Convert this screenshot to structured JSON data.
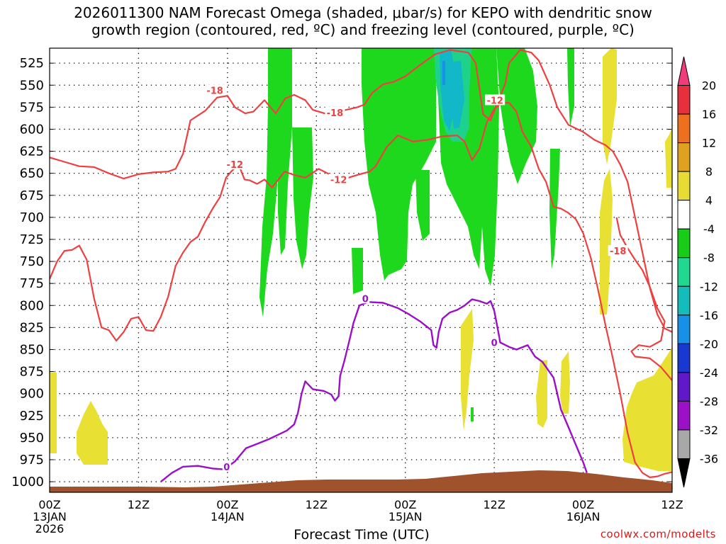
{
  "chart_data": {
    "type": "heatmap",
    "title_line1": "2026011300 NAM Forecast Omega (shaded, μbar/s) for KEPO with dendritic snow",
    "title_line2": "growth region (contoured, red, ºC) and freezing level (contoured, purple, ºC)",
    "xlabel": "Forecast Time (UTC)",
    "credit": "coolwx.com/modelts",
    "x_hours_range": [
      0,
      84
    ],
    "pressure_range_hpa": [
      1012,
      508
    ],
    "y_ticks": [
      525,
      550,
      575,
      600,
      625,
      650,
      675,
      700,
      725,
      750,
      775,
      800,
      825,
      850,
      875,
      900,
      925,
      950,
      975,
      1000
    ],
    "x_ticks": [
      {
        "hour": 0,
        "lines": [
          "00Z",
          "13JAN",
          "2026"
        ]
      },
      {
        "hour": 12,
        "lines": [
          "12Z"
        ]
      },
      {
        "hour": 24,
        "lines": [
          "00Z",
          "14JAN"
        ]
      },
      {
        "hour": 36,
        "lines": [
          "12Z"
        ]
      },
      {
        "hour": 48,
        "lines": [
          "00Z",
          "15JAN"
        ]
      },
      {
        "hour": 60,
        "lines": [
          "12Z"
        ]
      },
      {
        "hour": 72,
        "lines": [
          "00Z",
          "16JAN"
        ]
      },
      {
        "hour": 84,
        "lines": [
          "12Z"
        ]
      }
    ],
    "colorbar": {
      "labels": [
        "20",
        "16",
        "12",
        "8",
        "4",
        "-4",
        "-8",
        "-12",
        "-16",
        "-20",
        "-24",
        "-28",
        "-32",
        "-36"
      ],
      "colors": [
        "#f03c7a",
        "#e8303c",
        "#ec7020",
        "#e0a020",
        "#e8dc34",
        "#ffffff",
        "#18cc18",
        "#20d890",
        "#14bcbc",
        "#1890e8",
        "#1838d0",
        "#6018c8",
        "#9c10c8",
        "#a8a8a8",
        "#000000"
      ]
    },
    "shading_colors": {
      "green": "#1ed81e",
      "teal": "#1ed28c",
      "cyan": "#12b8c8",
      "yellow": "#e8e032",
      "terrain": "#a0522d"
    },
    "contour_colors": {
      "dendritic": "#ee4040",
      "freezing": "#9a10c8"
    },
    "contour_labels": [
      {
        "text": "-18",
        "hour": 22.3,
        "p": 556
      },
      {
        "text": "-18",
        "hour": 38.5,
        "p": 581
      },
      {
        "text": "-12",
        "hour": 25,
        "p": 640
      },
      {
        "text": "-12",
        "hour": 39,
        "p": 657
      },
      {
        "text": "-12",
        "hour": 60.1,
        "p": 567
      },
      {
        "text": "-18",
        "hour": 76.7,
        "p": 738
      },
      {
        "text": "0",
        "hour": 42.6,
        "p": 792
      },
      {
        "text": "0",
        "hour": 23.9,
        "p": 983
      },
      {
        "text": "0",
        "hour": 60,
        "p": 842
      }
    ],
    "dendritic_contours": [
      {
        "name": "-18 upper",
        "points": [
          [
            0,
            632
          ],
          [
            2,
            637
          ],
          [
            4,
            642
          ],
          [
            6,
            643
          ],
          [
            8,
            650
          ],
          [
            10,
            656
          ],
          [
            12,
            651
          ],
          [
            14,
            649
          ],
          [
            16,
            648
          ],
          [
            17,
            645
          ],
          [
            18,
            628
          ],
          [
            19,
            590
          ],
          [
            21,
            579
          ],
          [
            22.6,
            564
          ],
          [
            24,
            562
          ],
          [
            25,
            575
          ],
          [
            26.4,
            582
          ],
          [
            27.5,
            580
          ],
          [
            29,
            567
          ],
          [
            30.5,
            582
          ],
          [
            31.8,
            565
          ],
          [
            33,
            561
          ],
          [
            34.5,
            567
          ],
          [
            35.5,
            578
          ],
          [
            37.5,
            583
          ],
          [
            39.5,
            579
          ],
          [
            41.5,
            575
          ],
          [
            42.5,
            572
          ],
          [
            43.5,
            559
          ],
          [
            45,
            549
          ],
          [
            46.5,
            546
          ],
          [
            48,
            540
          ],
          [
            50,
            527
          ],
          [
            52,
            515
          ],
          [
            54,
            510
          ],
          [
            56.5,
            513
          ],
          [
            57.5,
            525
          ],
          [
            58.5,
            583
          ],
          [
            59.5,
            590
          ],
          [
            60.2,
            575
          ],
          [
            61.5,
            548
          ],
          [
            62,
            525
          ],
          [
            63.5,
            510
          ],
          [
            65,
            513
          ],
          [
            66,
            522
          ],
          [
            67.5,
            550
          ],
          [
            68.5,
            575
          ],
          [
            70,
            595
          ],
          [
            72,
            603
          ],
          [
            73.5,
            612
          ],
          [
            75,
            618
          ],
          [
            76,
            625
          ],
          [
            77,
            640
          ],
          [
            78,
            660
          ],
          [
            79,
            700
          ],
          [
            80,
            740
          ],
          [
            81,
            780
          ],
          [
            82,
            810
          ],
          [
            83,
            826
          ],
          [
            84,
            830
          ]
        ]
      },
      {
        "name": "-12 middle",
        "points": [
          [
            0,
            770
          ],
          [
            1,
            750
          ],
          [
            2,
            738
          ],
          [
            3,
            737
          ],
          [
            4,
            732
          ],
          [
            5,
            748
          ],
          [
            6,
            792
          ],
          [
            7,
            825
          ],
          [
            8,
            828
          ],
          [
            9,
            840
          ],
          [
            10,
            830
          ],
          [
            11,
            815
          ],
          [
            12,
            813
          ],
          [
            13,
            828
          ],
          [
            14,
            829
          ],
          [
            15,
            813
          ],
          [
            16,
            790
          ],
          [
            17,
            755
          ],
          [
            18,
            740
          ],
          [
            19,
            728
          ],
          [
            20,
            722
          ],
          [
            21,
            705
          ],
          [
            22,
            690
          ],
          [
            23,
            677
          ],
          [
            23.8,
            655
          ],
          [
            24.5,
            648
          ],
          [
            25.5,
            640
          ],
          [
            26.3,
            657
          ],
          [
            27,
            658
          ],
          [
            28,
            662
          ],
          [
            29,
            657
          ],
          [
            30,
            666
          ],
          [
            30.8,
            658
          ],
          [
            31.7,
            648
          ],
          [
            33,
            652
          ],
          [
            34.5,
            655
          ],
          [
            36.3,
            645
          ],
          [
            37.5,
            650
          ],
          [
            39.5,
            657
          ],
          [
            41.5,
            652
          ],
          [
            43.2,
            648
          ],
          [
            44,
            642
          ],
          [
            45.5,
            620
          ],
          [
            47,
            607
          ],
          [
            49,
            614
          ],
          [
            51,
            612
          ],
          [
            53,
            608
          ],
          [
            55,
            607
          ],
          [
            56,
            614
          ],
          [
            57,
            635
          ],
          [
            58,
            622
          ],
          [
            59,
            592
          ],
          [
            60,
            577
          ],
          [
            61,
            570
          ],
          [
            62,
            570
          ],
          [
            63,
            580
          ],
          [
            63.8,
            603
          ],
          [
            65,
            620
          ],
          [
            66,
            645
          ],
          [
            67,
            660
          ],
          [
            68,
            688
          ],
          [
            69,
            690
          ],
          [
            70,
            695
          ],
          [
            71,
            702
          ],
          [
            72,
            718
          ],
          [
            73,
            745
          ],
          [
            74,
            782
          ],
          [
            75,
            822
          ],
          [
            76,
            860
          ],
          [
            77,
            900
          ],
          [
            78,
            945
          ],
          [
            79,
            978
          ],
          [
            80,
            990
          ],
          [
            81,
            995
          ],
          [
            82,
            994
          ],
          [
            83,
            991
          ],
          [
            84,
            989
          ]
        ]
      },
      {
        "name": "-18 lower right",
        "points": [
          [
            76.5,
            700
          ],
          [
            77,
            720
          ],
          [
            78,
            735
          ],
          [
            79,
            748
          ],
          [
            80,
            760
          ],
          [
            81,
            779
          ],
          [
            82,
            803
          ],
          [
            83,
            818
          ],
          [
            82.5,
            840
          ],
          [
            81,
            847
          ],
          [
            79.5,
            845
          ],
          [
            78.5,
            852
          ],
          [
            79,
            858
          ],
          [
            81,
            860
          ],
          [
            82.5,
            870
          ],
          [
            84,
            885
          ]
        ]
      }
    ],
    "freezing_contours": [
      {
        "name": "0 main",
        "points": [
          [
            15,
            1000
          ],
          [
            16.5,
            990
          ],
          [
            18,
            983
          ],
          [
            20,
            982
          ],
          [
            22,
            985
          ],
          [
            23.5,
            986
          ],
          [
            25,
            977
          ],
          [
            26.5,
            962
          ],
          [
            28,
            957
          ],
          [
            29.5,
            952
          ],
          [
            31,
            946
          ],
          [
            32,
            942
          ],
          [
            33,
            935
          ],
          [
            33.5,
            922
          ],
          [
            34,
            900
          ],
          [
            34.5,
            886
          ],
          [
            35.5,
            895
          ],
          [
            37,
            897
          ],
          [
            38,
            901
          ],
          [
            38.5,
            908
          ],
          [
            39,
            903
          ],
          [
            39.2,
            880
          ],
          [
            39.8,
            862
          ],
          [
            40.5,
            838
          ],
          [
            41,
            820
          ],
          [
            41.8,
            800
          ],
          [
            43,
            796
          ],
          [
            45,
            797
          ],
          [
            47,
            803
          ],
          [
            48.5,
            810
          ],
          [
            50,
            818
          ],
          [
            51.5,
            828
          ],
          [
            51.8,
            845
          ],
          [
            52.2,
            848
          ],
          [
            52.5,
            830
          ],
          [
            53,
            815
          ],
          [
            54,
            808
          ],
          [
            55,
            805
          ],
          [
            56,
            800
          ],
          [
            57,
            793
          ],
          [
            58,
            795
          ],
          [
            59,
            798
          ],
          [
            59.5,
            795
          ],
          [
            60,
            806
          ],
          [
            60.5,
            828
          ],
          [
            60.8,
            842
          ],
          [
            62,
            847
          ],
          [
            63,
            850
          ],
          [
            64.5,
            845
          ],
          [
            65.5,
            858
          ],
          [
            66.5,
            864
          ],
          [
            67,
            870
          ],
          [
            68,
            882
          ],
          [
            68.5,
            900
          ],
          [
            69,
            918
          ],
          [
            70,
            938
          ],
          [
            71,
            958
          ],
          [
            72,
            978
          ],
          [
            72.5,
            990
          ]
        ]
      }
    ]
  }
}
